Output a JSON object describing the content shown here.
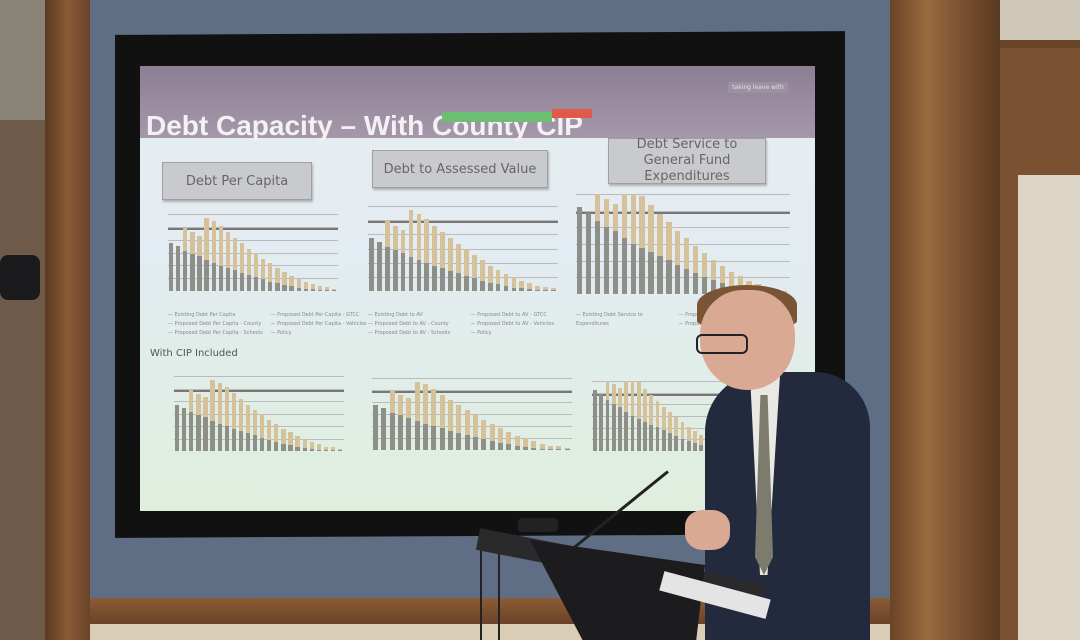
{
  "slide": {
    "title": "Debt Capacity – With County CIP",
    "corner_tag": "taking leave with",
    "section_heading_top": [
      "Debt Per Capita",
      "Debt to Assessed Value",
      "Debt Service to General Fund Expenditures"
    ],
    "section_label_bottom": "With CIP Included",
    "legends": [
      [
        "Existing Debt Per Capita",
        "Proposed Debt Per Capita - County",
        "Proposed Debt Per Capita - Schools",
        "Proposed Debt Per Capita - GTCC",
        "Proposed Debt Per Capita - Vehicles",
        "Policy"
      ],
      [
        "Existing Debt to AV",
        "Proposed Debt to AV - County",
        "Proposed Debt to AV - Schools",
        "Proposed Debt to AV - GTCC",
        "Proposed Debt to AV - Vehicles",
        "Policy"
      ],
      [
        "Existing Debt Service to Expenditures",
        "Proposed DS to Exp - Schools",
        "Proposed DS to Exp - Vehicles"
      ]
    ]
  },
  "colors": {
    "existing": "#8f8f8a",
    "proposed": "#d6c29a",
    "wall": "#5f6e84",
    "wood": "#8a5a34",
    "title_bar": "#9a8ea0"
  }
}
